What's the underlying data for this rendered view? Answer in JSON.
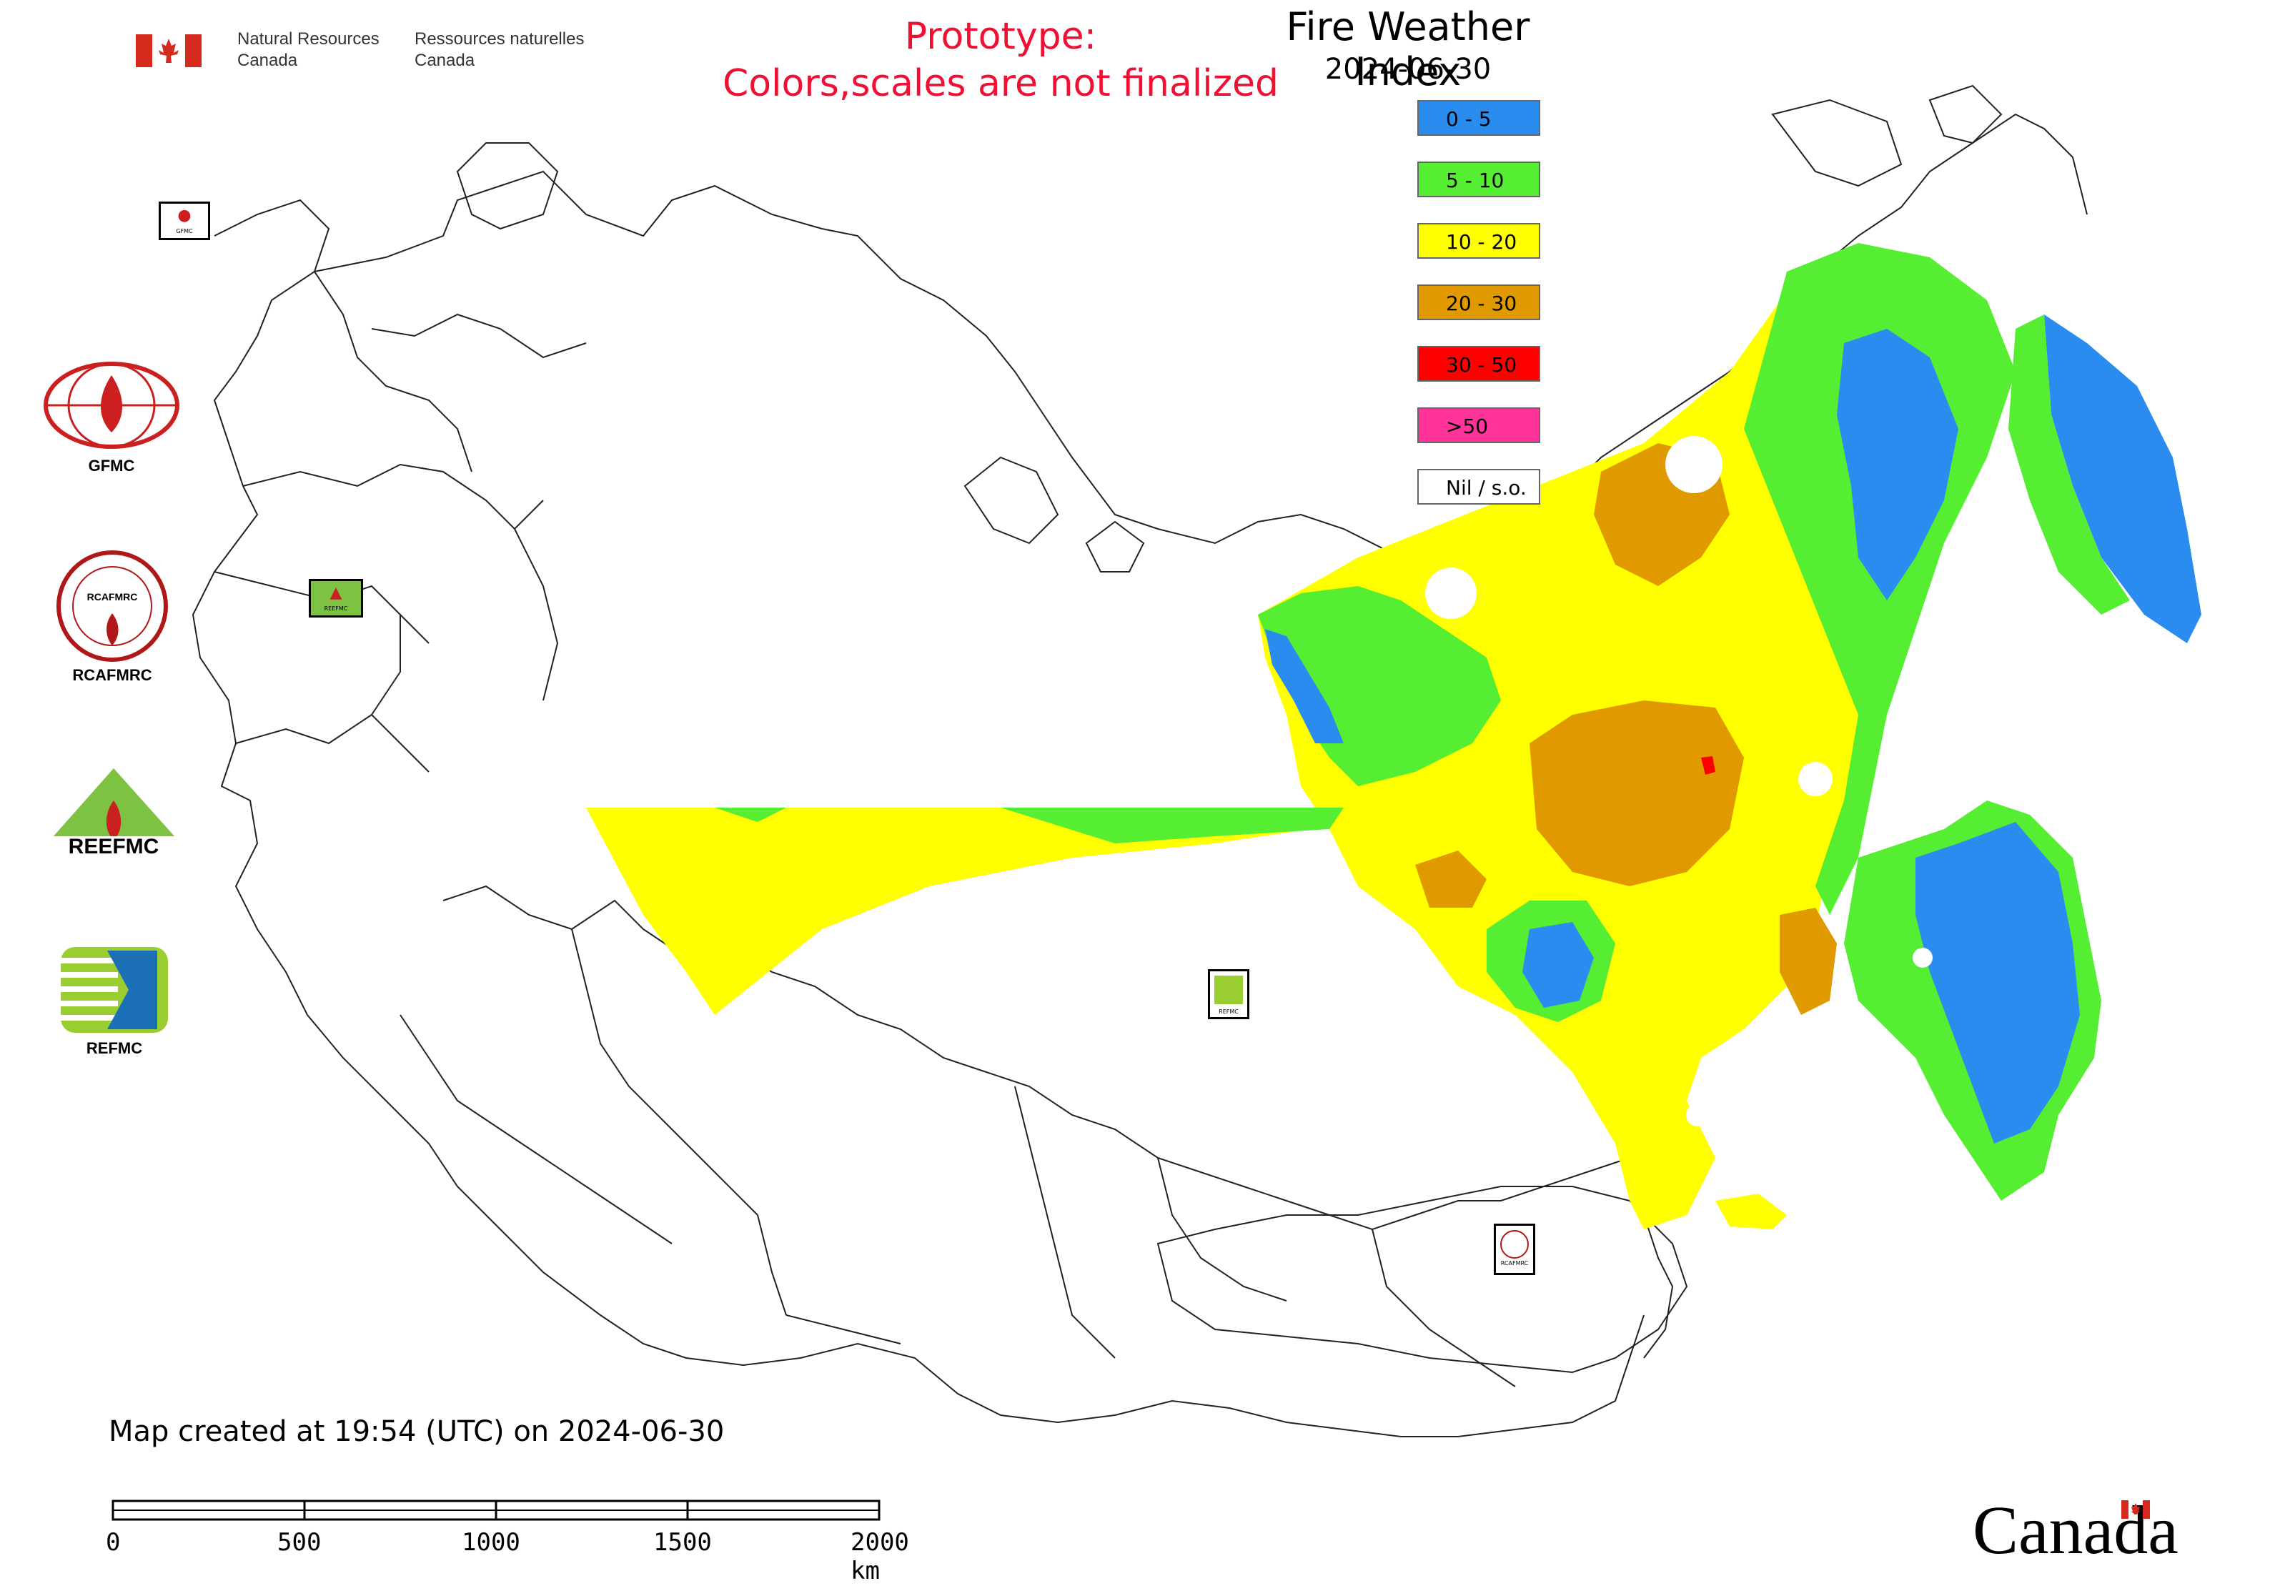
{
  "header": {
    "org_en_line1": "Natural Resources",
    "org_en_line2": "Canada",
    "org_fr_line1": "Ressources naturelles",
    "org_fr_line2": "Canada",
    "prototype_line1": "Prototype:",
    "prototype_line2": "Colors,scales are not finalized"
  },
  "legend": {
    "title": "Fire Weather Index",
    "date": "2024-06-30",
    "items": [
      {
        "label": "0 - 5",
        "color": "#2b8cf0"
      },
      {
        "label": "5 - 10",
        "color": "#55ee33"
      },
      {
        "label": "10 - 20",
        "color": "#ffff00"
      },
      {
        "label": "20 - 30",
        "color": "#e09a00"
      },
      {
        "label": "30 - 50",
        "color": "#ff0000"
      },
      {
        "label": ">50",
        "color": "#ff3399"
      },
      {
        "label": "Nil / s.o.",
        "color": "#ffffff"
      }
    ]
  },
  "organizations": [
    {
      "label": "GFMC",
      "icon": "gfmc-logo"
    },
    {
      "label": "RCAFMRC",
      "icon": "rcafmrc-logo"
    },
    {
      "label": "",
      "icon": "reefmc-logo"
    },
    {
      "label": "REFMC",
      "icon": "refmc-logo"
    }
  ],
  "map_stamps": [
    {
      "icon": "gfmc-stamp",
      "text": "GFMC"
    },
    {
      "icon": "reefmc-stamp",
      "text": "REEFMC"
    },
    {
      "icon": "refmc-stamp",
      "text": "REFMC"
    },
    {
      "icon": "rcafmrc-stamp",
      "text": "RCAFMRC"
    }
  ],
  "footer": {
    "caption": "Map created at 19:54 (UTC) on 2024-06-30",
    "scale_labels": [
      "0",
      "500",
      "1000",
      "1500",
      "2000 km"
    ],
    "wordmark": "Canada"
  }
}
